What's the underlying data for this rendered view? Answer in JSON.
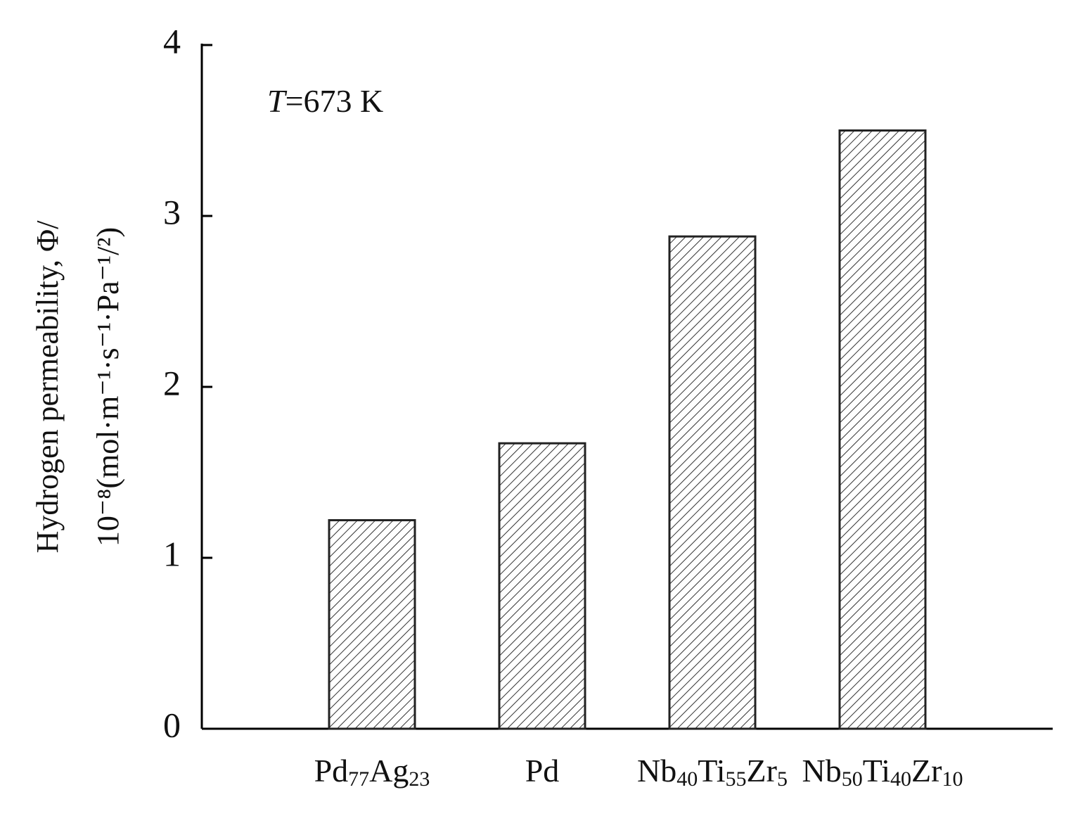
{
  "chart_data": {
    "type": "bar",
    "categories": [
      "Pd77Ag23",
      "Pd",
      "Nb40Ti55Zr5",
      "Nb50Ti40Zr10"
    ],
    "values": [
      1.22,
      1.67,
      2.88,
      3.5
    ],
    "color": "#222222",
    "ylim": [
      0,
      4
    ],
    "yticks": [
      0,
      1,
      2,
      3,
      4
    ],
    "ylabel": [
      "Hydrogen permeability, Φ/",
      "10⁻⁸(mol·m⁻¹·s⁻¹·Pa⁻¹/²)"
    ],
    "annotation": "T=673 K"
  }
}
